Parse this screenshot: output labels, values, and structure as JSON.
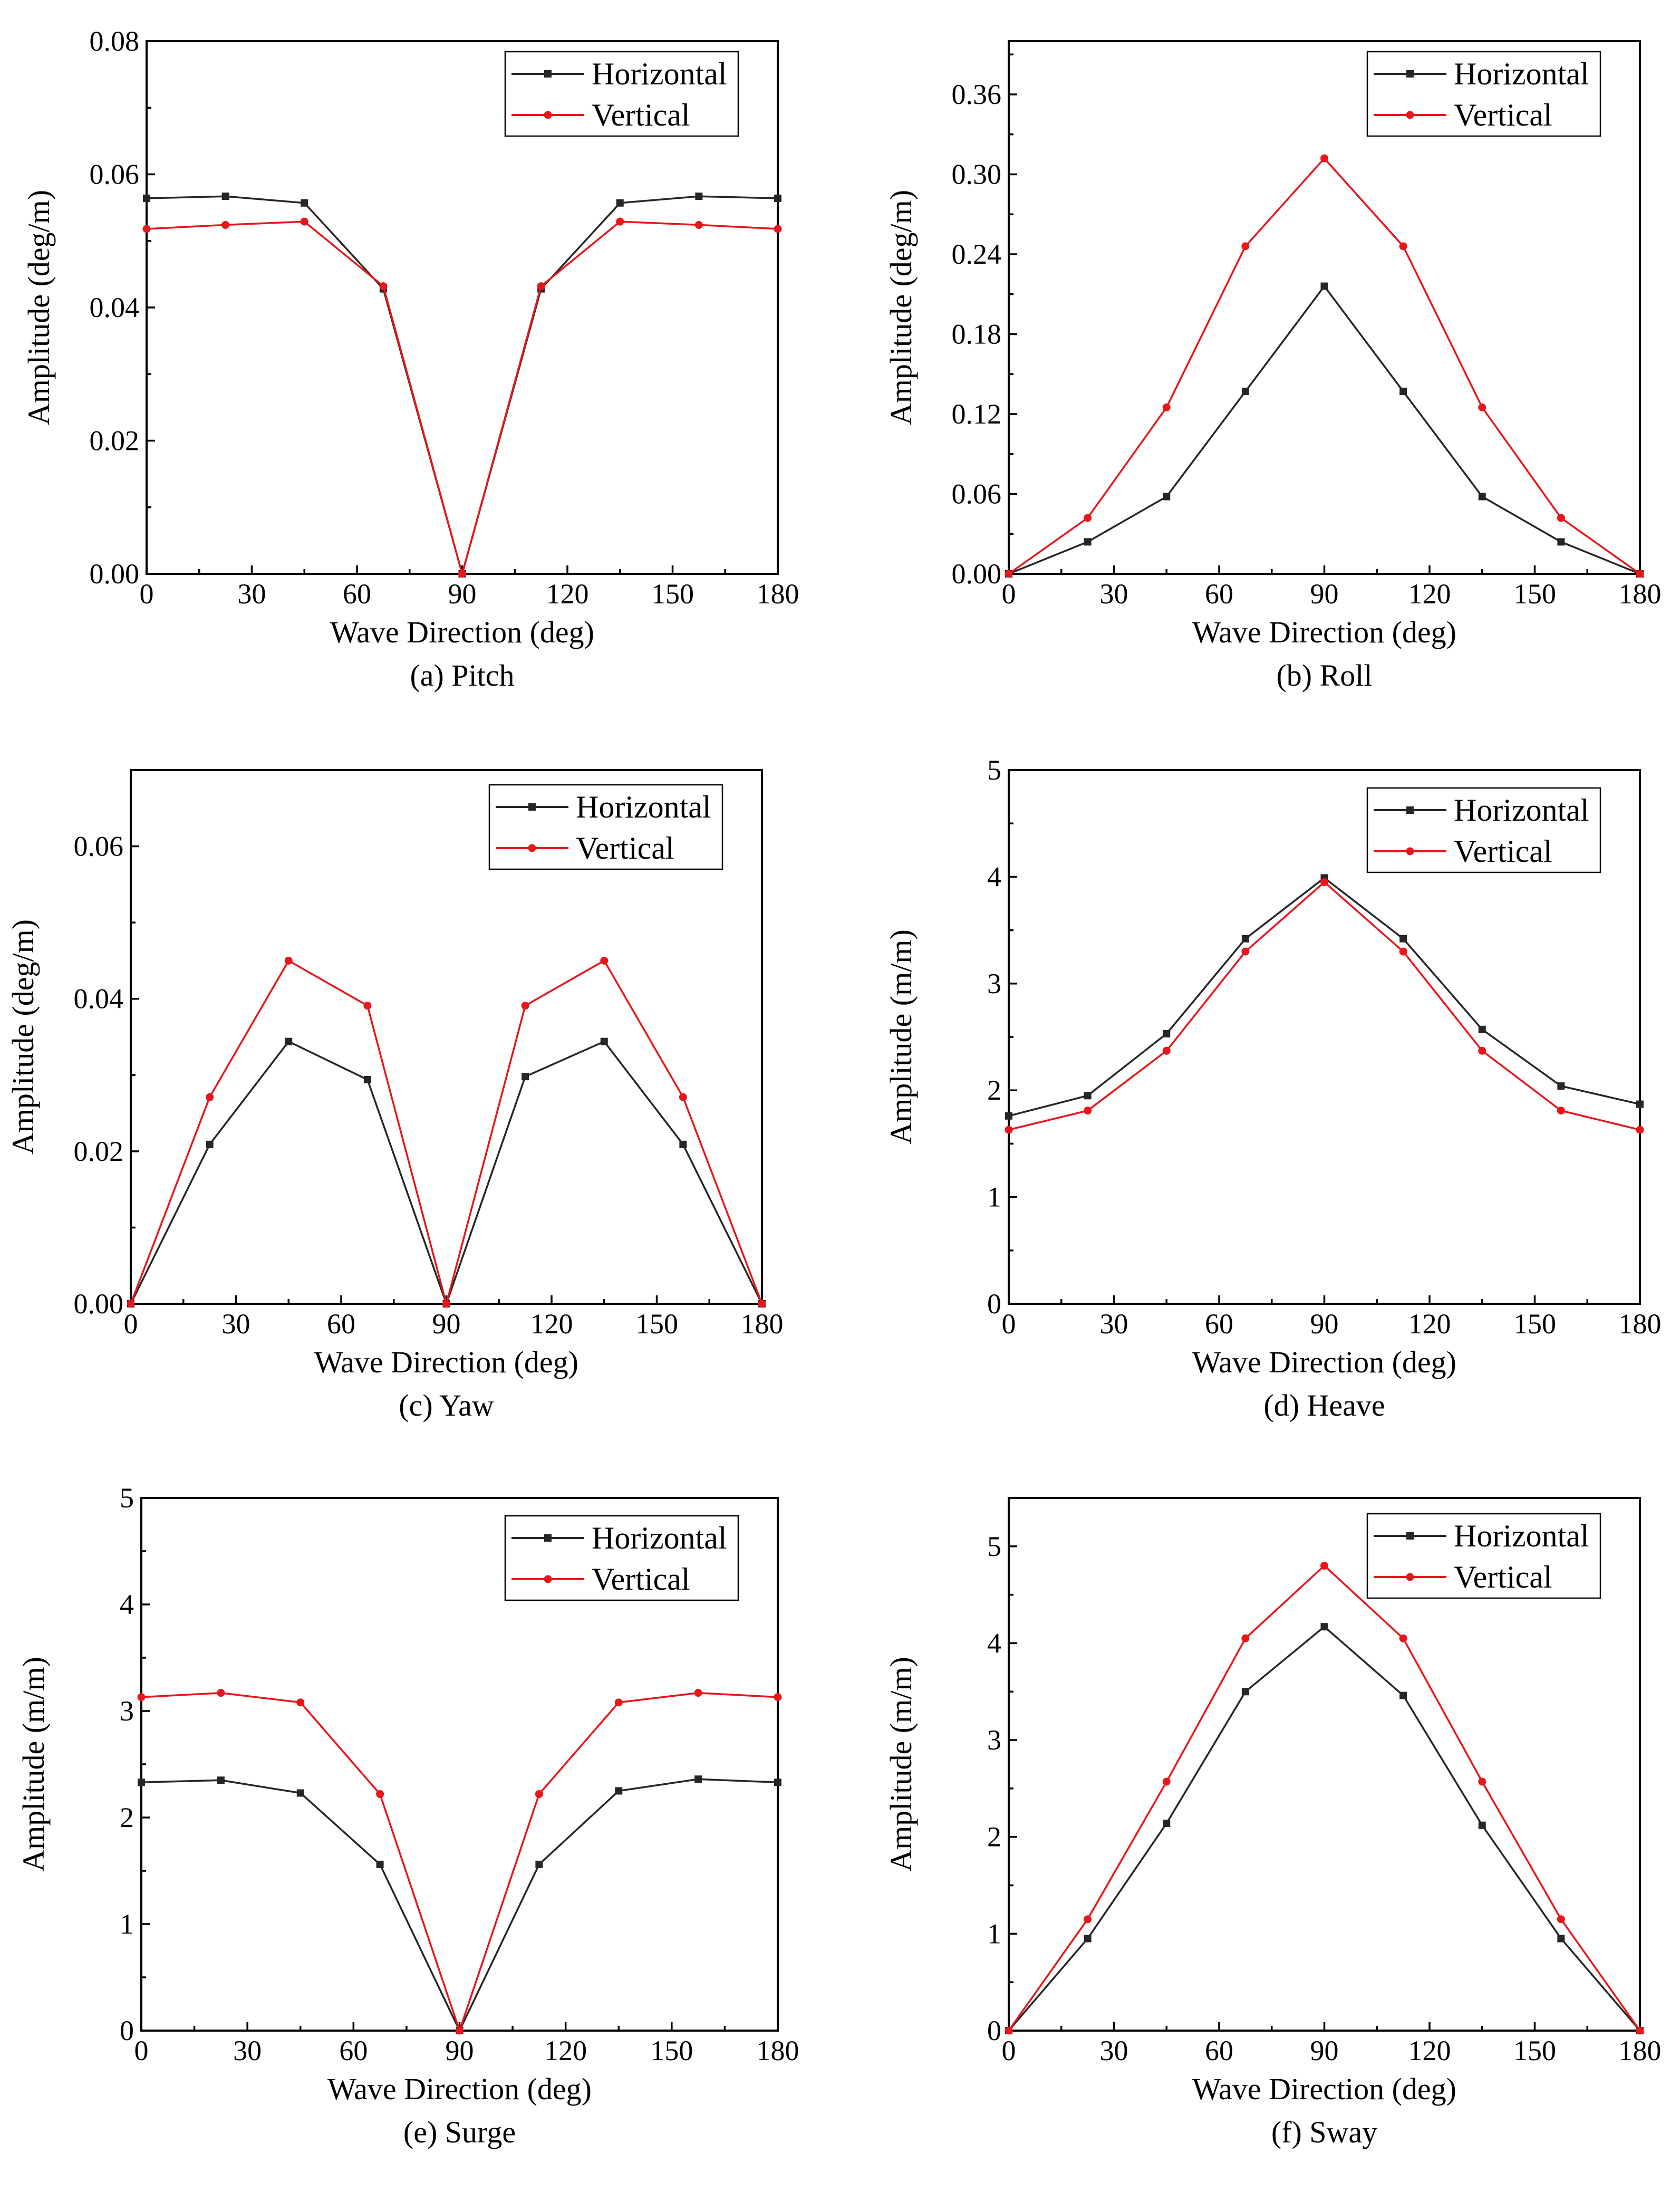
{
  "chart_data": [
    {
      "type": "line",
      "caption": "(a) Pitch",
      "xlabel": "Wave Direction (deg)",
      "ylabel": "Amplitude (deg/m)",
      "xlim": [
        0,
        180
      ],
      "ylim": [
        0,
        0.08
      ],
      "xticks": [
        "0",
        "30",
        "60",
        "90",
        "120",
        "150",
        "180"
      ],
      "yticks": [
        "0.00",
        "0.02",
        "0.04",
        "0.06",
        "0.08"
      ],
      "x": [
        0,
        22.5,
        45,
        67.5,
        90,
        112.5,
        135,
        157.5,
        180
      ],
      "series": [
        {
          "name": "Horizontal",
          "color": "#262626",
          "marker": "square",
          "values": [
            0.0564,
            0.0567,
            0.0557,
            0.0428,
            0.0,
            0.0428,
            0.0557,
            0.0567,
            0.0564
          ]
        },
        {
          "name": "Vertical",
          "color": "#e8161b",
          "marker": "circle",
          "values": [
            0.0518,
            0.0524,
            0.0529,
            0.0432,
            0.0,
            0.0432,
            0.0529,
            0.0524,
            0.0518
          ]
        }
      ]
    },
    {
      "type": "line",
      "caption": "(b) Roll",
      "xlabel": "Wave Direction (deg)",
      "ylabel": "Amplitude (deg/m)",
      "xlim": [
        0,
        180
      ],
      "ylim": [
        0,
        0.4
      ],
      "xticks": [
        "0",
        "30",
        "60",
        "90",
        "120",
        "150",
        "180"
      ],
      "yticks": [
        "0.00",
        "0.06",
        "0.12",
        "0.18",
        "0.24",
        "0.30",
        "0.36"
      ],
      "ytickvals": [
        0,
        0.06,
        0.12,
        0.18,
        0.24,
        0.3,
        0.36
      ],
      "x": [
        0,
        22.5,
        45,
        67.5,
        90,
        112.5,
        135,
        157.5,
        180
      ],
      "series": [
        {
          "name": "Horizontal",
          "color": "#262626",
          "marker": "square",
          "values": [
            0.0,
            0.024,
            0.058,
            0.137,
            0.216,
            0.137,
            0.058,
            0.024,
            0.0
          ]
        },
        {
          "name": "Vertical",
          "color": "#e8161b",
          "marker": "circle",
          "values": [
            0.0,
            0.042,
            0.125,
            0.246,
            0.312,
            0.246,
            0.125,
            0.042,
            0.0
          ]
        }
      ]
    },
    {
      "type": "line",
      "caption": "(c) Yaw",
      "xlabel": "Wave Direction (deg)",
      "ylabel": "Amplitude (deg/m)",
      "xlim": [
        0,
        180
      ],
      "ylim": [
        0,
        0.07
      ],
      "xticks": [
        "0",
        "30",
        "60",
        "90",
        "120",
        "150",
        "180"
      ],
      "yticks": [
        "0.00",
        "0.02",
        "0.04",
        "0.06"
      ],
      "ytickvals": [
        0,
        0.02,
        0.04,
        0.06
      ],
      "x": [
        0,
        22.5,
        45,
        67.5,
        90,
        112.5,
        135,
        157.5,
        180
      ],
      "series": [
        {
          "name": "Horizontal",
          "color": "#262626",
          "marker": "square",
          "values": [
            0.0,
            0.0209,
            0.0344,
            0.0294,
            0.0,
            0.0298,
            0.0344,
            0.0209,
            0.0
          ]
        },
        {
          "name": "Vertical",
          "color": "#e8161b",
          "marker": "circle",
          "values": [
            0.0,
            0.0271,
            0.045,
            0.0391,
            0.0,
            0.0391,
            0.045,
            0.0271,
            0.0
          ]
        }
      ]
    },
    {
      "type": "line",
      "caption": "(d) Heave",
      "xlabel": "Wave Direction (deg)",
      "ylabel": "Amplitude (m/m)",
      "xlim": [
        0,
        180
      ],
      "ylim": [
        0,
        5
      ],
      "xticks": [
        "0",
        "30",
        "60",
        "90",
        "120",
        "150",
        "180"
      ],
      "yticks": [
        "0",
        "1",
        "2",
        "3",
        "4",
        "5"
      ],
      "x": [
        0,
        22.5,
        45,
        67.5,
        90,
        112.5,
        135,
        157.5,
        180
      ],
      "series": [
        {
          "name": "Horizontal",
          "color": "#262626",
          "marker": "square",
          "values": [
            1.76,
            1.95,
            2.53,
            3.42,
            3.99,
            3.42,
            2.57,
            2.04,
            1.87
          ]
        },
        {
          "name": "Vertical",
          "color": "#e8161b",
          "marker": "circle",
          "values": [
            1.63,
            1.81,
            2.37,
            3.3,
            3.95,
            3.3,
            2.37,
            1.81,
            1.63
          ]
        }
      ]
    },
    {
      "type": "line",
      "caption": "(e) Surge",
      "xlabel": "Wave Direction (deg)",
      "ylabel": "Amplitude (m/m)",
      "xlim": [
        0,
        180
      ],
      "ylim": [
        0,
        5
      ],
      "xticks": [
        "0",
        "30",
        "60",
        "90",
        "120",
        "150",
        "180"
      ],
      "yticks": [
        "0",
        "1",
        "2",
        "3",
        "4",
        "5"
      ],
      "x": [
        0,
        22.5,
        45,
        67.5,
        90,
        112.5,
        135,
        157.5,
        180
      ],
      "series": [
        {
          "name": "Horizontal",
          "color": "#262626",
          "marker": "square",
          "values": [
            2.33,
            2.35,
            2.23,
            1.56,
            0.0,
            1.56,
            2.25,
            2.36,
            2.33
          ]
        },
        {
          "name": "Vertical",
          "color": "#e8161b",
          "marker": "circle",
          "values": [
            3.13,
            3.17,
            3.08,
            2.22,
            0.0,
            2.22,
            3.08,
            3.17,
            3.13
          ]
        }
      ]
    },
    {
      "type": "line",
      "caption": "(f) Sway",
      "xlabel": "Wave Direction (deg)",
      "ylabel": "Amplitude (m/m)",
      "xlim": [
        0,
        180
      ],
      "ylim": [
        0,
        5.5
      ],
      "xticks": [
        "0",
        "30",
        "60",
        "90",
        "120",
        "150",
        "180"
      ],
      "yticks": [
        "0",
        "1",
        "2",
        "3",
        "4",
        "5"
      ],
      "ytickvals": [
        0,
        1,
        2,
        3,
        4,
        5
      ],
      "x": [
        0,
        22.5,
        45,
        67.5,
        90,
        112.5,
        135,
        157.5,
        180
      ],
      "series": [
        {
          "name": "Horizontal",
          "color": "#262626",
          "marker": "square",
          "values": [
            0.0,
            0.95,
            2.14,
            3.5,
            4.17,
            3.46,
            2.12,
            0.95,
            0.0
          ]
        },
        {
          "name": "Vertical",
          "color": "#e8161b",
          "marker": "circle",
          "values": [
            0.0,
            1.15,
            2.57,
            4.05,
            4.8,
            4.05,
            2.57,
            1.15,
            0.0
          ]
        }
      ]
    }
  ]
}
